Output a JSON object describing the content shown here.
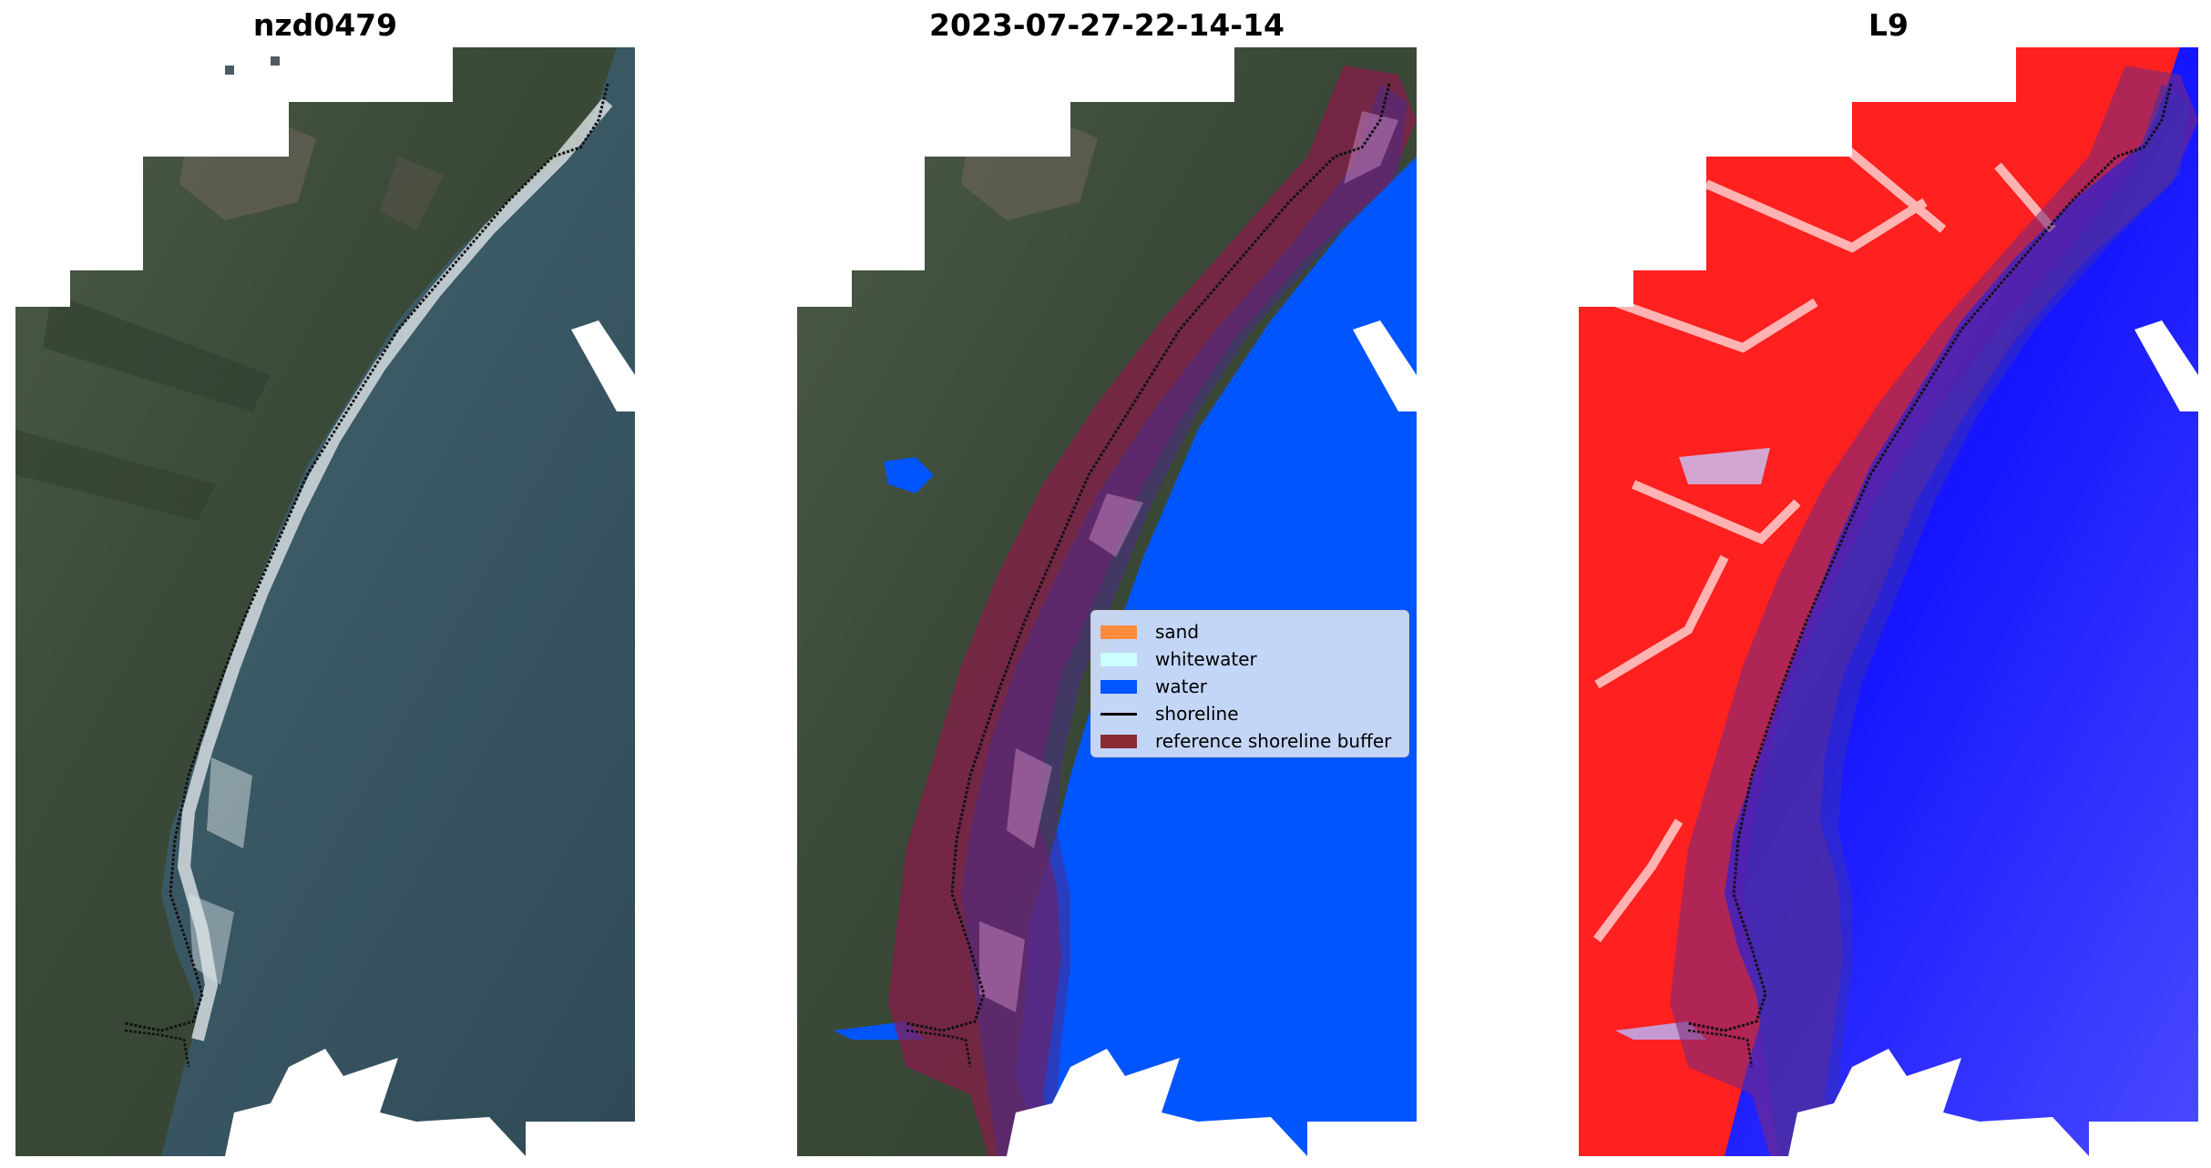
{
  "panels": [
    {
      "title": "nzd0479"
    },
    {
      "title": "2023-07-27-22-14-14"
    },
    {
      "title": "L9"
    }
  ],
  "legend": {
    "items": [
      {
        "label": "sand",
        "color": "#ff8c3c"
      },
      {
        "label": "whitewater",
        "color": "#ccffff"
      },
      {
        "label": "water",
        "color": "#0055ff"
      },
      {
        "label": "shoreline",
        "color": "#000000"
      },
      {
        "label": "reference shoreline buffer",
        "color": "#8b1a2a"
      }
    ]
  },
  "colors": {
    "land_rgb": "#3d4a3c",
    "sea_rgb": "#34505c",
    "index_positive": "#ff0000",
    "index_negative": "#1010ff",
    "nodata": "#ffffff"
  }
}
